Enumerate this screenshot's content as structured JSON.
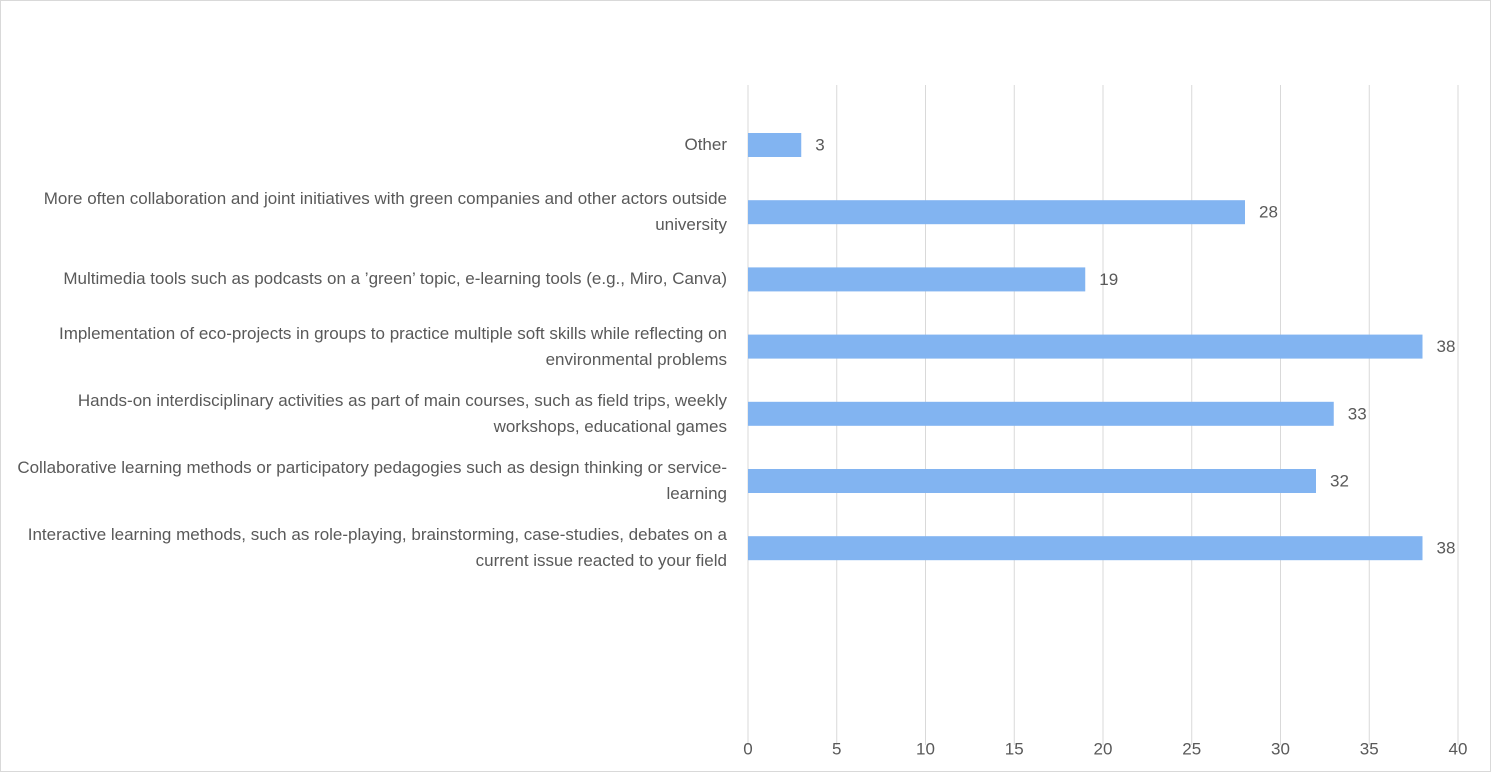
{
  "chart_data": {
    "type": "bar",
    "orientation": "horizontal",
    "categories": [
      "Other",
      "More often collaboration and joint initiatives with green companies and other actors outside university",
      "Multimedia tools such as podcasts on a ’green’ topic, e-learning tools (e.g., Miro, Canva)",
      "Implementation of eco-projects in groups to practice multiple soft skills while reflecting on environmental problems",
      "Hands-on interdisciplinary activities as part of main courses, such as field trips, weekly workshops, educational games",
      "Collaborative learning methods or participatory pedagogies such as design thinking or service-learning",
      "Interactive learning methods, such as role-playing, brainstorming, case-studies, debates on a current issue reacted to your field"
    ],
    "values": [
      3,
      28,
      19,
      38,
      33,
      32,
      38
    ],
    "color": "#82b4f1",
    "xlim": [
      0,
      40
    ],
    "xticks": [
      0,
      5,
      10,
      15,
      20,
      25,
      30,
      35,
      40
    ],
    "grid": true
  }
}
